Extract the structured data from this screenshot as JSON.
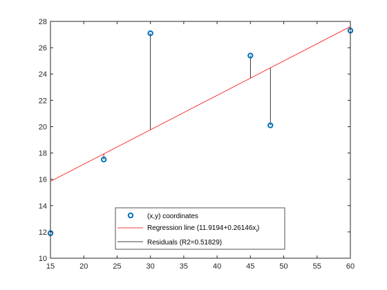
{
  "chart_data": {
    "type": "scatter",
    "title": "",
    "xlabel": "",
    "ylabel": "",
    "xlim": [
      15,
      60
    ],
    "ylim": [
      10,
      28
    ],
    "xticks": [
      15,
      20,
      25,
      30,
      35,
      40,
      45,
      50,
      55,
      60
    ],
    "yticks": [
      10,
      12,
      14,
      16,
      18,
      20,
      22,
      24,
      26,
      28
    ],
    "grid": false,
    "legend_position": "bottom-center",
    "series": [
      {
        "name": "(x,y) coordinates",
        "kind": "markers",
        "color": "#0072BD",
        "x": [
          15,
          23,
          30,
          45,
          48,
          60
        ],
        "y": [
          11.9,
          17.5,
          27.1,
          25.4,
          20.1,
          27.3
        ]
      },
      {
        "name": "Regression line (11.9194+0.26146x",
        "name_subscript": "i",
        "name_suffix": ")",
        "kind": "line",
        "color": "#FF0000",
        "intercept": 11.9194,
        "slope": 0.26146
      },
      {
        "name": "Residuals (R2=0.51829)",
        "kind": "residuals",
        "color": "#000000"
      }
    ]
  }
}
